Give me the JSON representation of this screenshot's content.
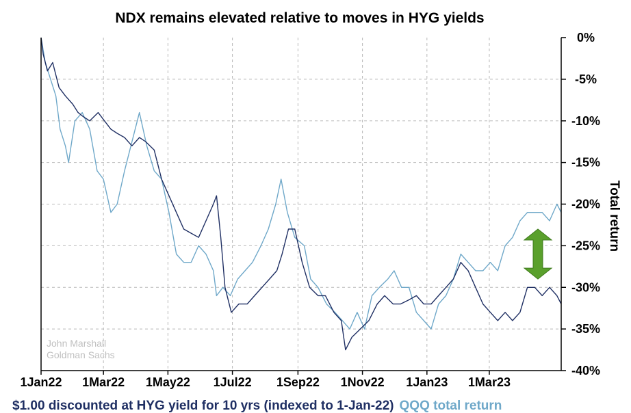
{
  "chart_data": {
    "type": "line",
    "title": "NDX remains elevated relative to moves in HYG yields",
    "ylabel": "Total return",
    "xlabel": "",
    "x_ticks": [
      "1Jan22",
      "1Mar22",
      "1May22",
      "1Jul22",
      "1Sep22",
      "1Nov22",
      "1Jan23",
      "1Mar23"
    ],
    "y_ticks": [
      "0%",
      "-5%",
      "-10%",
      "-15%",
      "-20%",
      "-25%",
      "-30%",
      "-35%",
      "-40%"
    ],
    "ylim": [
      -40,
      0
    ],
    "xlim": [
      "2022-01-01",
      "2023-05-08"
    ],
    "y_axis_side": "right",
    "grid": true,
    "legend_position": "bottom",
    "annotation": "green double-headed arrow between the two series near Apr 2023",
    "watermark": [
      "John Marshall",
      "Goldman Sachs"
    ],
    "series": [
      {
        "name": "$1.00 discounted at HYG yield for 10 yrs (indexed to 1-Jan-22)",
        "color": "#1f2f63",
        "points": [
          [
            "2022-01-01",
            0
          ],
          [
            "2022-01-03",
            -2
          ],
          [
            "2022-01-07",
            -4
          ],
          [
            "2022-01-12",
            -3
          ],
          [
            "2022-01-18",
            -6
          ],
          [
            "2022-01-24",
            -7
          ],
          [
            "2022-01-31",
            -8
          ],
          [
            "2022-02-05",
            -9
          ],
          [
            "2022-02-10",
            -9.5
          ],
          [
            "2022-02-16",
            -10
          ],
          [
            "2022-02-24",
            -9
          ],
          [
            "2022-03-02",
            -10
          ],
          [
            "2022-03-08",
            -11
          ],
          [
            "2022-03-14",
            -11.5
          ],
          [
            "2022-03-21",
            -12
          ],
          [
            "2022-03-28",
            -13
          ],
          [
            "2022-04-04",
            -12
          ],
          [
            "2022-04-10",
            -12.5
          ],
          [
            "2022-04-18",
            -13.5
          ],
          [
            "2022-04-25",
            -17
          ],
          [
            "2022-05-02",
            -19
          ],
          [
            "2022-05-09",
            -21
          ],
          [
            "2022-05-16",
            -23
          ],
          [
            "2022-05-23",
            -23.5
          ],
          [
            "2022-05-30",
            -24
          ],
          [
            "2022-06-06",
            -22
          ],
          [
            "2022-06-13",
            -20
          ],
          [
            "2022-06-16",
            -19
          ],
          [
            "2022-06-20",
            -24
          ],
          [
            "2022-06-24",
            -30
          ],
          [
            "2022-06-30",
            -33
          ],
          [
            "2022-07-07",
            -32
          ],
          [
            "2022-07-15",
            -32
          ],
          [
            "2022-07-22",
            -31
          ],
          [
            "2022-07-29",
            -30
          ],
          [
            "2022-08-05",
            -29
          ],
          [
            "2022-08-12",
            -28
          ],
          [
            "2022-08-17",
            -26
          ],
          [
            "2022-08-23",
            -23
          ],
          [
            "2022-08-29",
            -23
          ],
          [
            "2022-09-05",
            -27
          ],
          [
            "2022-09-12",
            -30
          ],
          [
            "2022-09-20",
            -31
          ],
          [
            "2022-09-27",
            -31
          ],
          [
            "2022-10-05",
            -33
          ],
          [
            "2022-10-12",
            -34
          ],
          [
            "2022-10-16",
            -37.5
          ],
          [
            "2022-10-22",
            -36
          ],
          [
            "2022-10-30",
            -35
          ],
          [
            "2022-11-07",
            -34
          ],
          [
            "2022-11-15",
            -32
          ],
          [
            "2022-11-22",
            -31
          ],
          [
            "2022-11-30",
            -32
          ],
          [
            "2022-12-07",
            -32
          ],
          [
            "2022-12-15",
            -31.5
          ],
          [
            "2022-12-22",
            -31
          ],
          [
            "2022-12-29",
            -32
          ],
          [
            "2023-01-05",
            -32
          ],
          [
            "2023-01-12",
            -31
          ],
          [
            "2023-01-19",
            -30
          ],
          [
            "2023-01-26",
            -29
          ],
          [
            "2023-02-02",
            -27
          ],
          [
            "2023-02-09",
            -28
          ],
          [
            "2023-02-16",
            -30
          ],
          [
            "2023-02-23",
            -32
          ],
          [
            "2023-03-02",
            -33
          ],
          [
            "2023-03-09",
            -34
          ],
          [
            "2023-03-16",
            -33
          ],
          [
            "2023-03-23",
            -34
          ],
          [
            "2023-03-30",
            -33
          ],
          [
            "2023-04-06",
            -30
          ],
          [
            "2023-04-13",
            -30
          ],
          [
            "2023-04-20",
            -31
          ],
          [
            "2023-04-27",
            -30
          ],
          [
            "2023-05-04",
            -31
          ],
          [
            "2023-05-08",
            -32
          ]
        ]
      },
      {
        "name": "QQQ total return",
        "color": "#6fa8c9",
        "points": [
          [
            "2022-01-01",
            0
          ],
          [
            "2022-01-05",
            -3
          ],
          [
            "2022-01-10",
            -5
          ],
          [
            "2022-01-15",
            -7
          ],
          [
            "2022-01-19",
            -11
          ],
          [
            "2022-01-24",
            -13
          ],
          [
            "2022-01-27",
            -15
          ],
          [
            "2022-02-02",
            -10
          ],
          [
            "2022-02-09",
            -9
          ],
          [
            "2022-02-16",
            -11
          ],
          [
            "2022-02-23",
            -16
          ],
          [
            "2022-03-01",
            -17
          ],
          [
            "2022-03-08",
            -21
          ],
          [
            "2022-03-14",
            -20
          ],
          [
            "2022-03-21",
            -16
          ],
          [
            "2022-03-29",
            -12
          ],
          [
            "2022-04-04",
            -9
          ],
          [
            "2022-04-11",
            -13
          ],
          [
            "2022-04-18",
            -16
          ],
          [
            "2022-04-25",
            -17
          ],
          [
            "2022-05-02",
            -21
          ],
          [
            "2022-05-09",
            -26
          ],
          [
            "2022-05-16",
            -27
          ],
          [
            "2022-05-23",
            -27
          ],
          [
            "2022-05-30",
            -25
          ],
          [
            "2022-06-06",
            -26
          ],
          [
            "2022-06-13",
            -28
          ],
          [
            "2022-06-16",
            -31
          ],
          [
            "2022-06-22",
            -30
          ],
          [
            "2022-06-29",
            -31
          ],
          [
            "2022-07-06",
            -29
          ],
          [
            "2022-07-13",
            -28
          ],
          [
            "2022-07-20",
            -27
          ],
          [
            "2022-07-28",
            -25
          ],
          [
            "2022-08-04",
            -23
          ],
          [
            "2022-08-11",
            -20
          ],
          [
            "2022-08-16",
            -17
          ],
          [
            "2022-08-22",
            -21
          ],
          [
            "2022-08-29",
            -24
          ],
          [
            "2022-09-07",
            -25
          ],
          [
            "2022-09-13",
            -29
          ],
          [
            "2022-09-20",
            -30
          ],
          [
            "2022-09-28",
            -32
          ],
          [
            "2022-10-06",
            -33
          ],
          [
            "2022-10-13",
            -34
          ],
          [
            "2022-10-20",
            -35
          ],
          [
            "2022-10-27",
            -33
          ],
          [
            "2022-11-03",
            -35
          ],
          [
            "2022-11-10",
            -31
          ],
          [
            "2022-11-17",
            -30
          ],
          [
            "2022-11-25",
            -29
          ],
          [
            "2022-12-01",
            -28
          ],
          [
            "2022-12-08",
            -30
          ],
          [
            "2022-12-15",
            -30
          ],
          [
            "2022-12-22",
            -33
          ],
          [
            "2022-12-29",
            -34
          ],
          [
            "2023-01-05",
            -35
          ],
          [
            "2023-01-12",
            -32
          ],
          [
            "2023-01-19",
            -31
          ],
          [
            "2023-01-26",
            -29
          ],
          [
            "2023-02-02",
            -26
          ],
          [
            "2023-02-09",
            -27
          ],
          [
            "2023-02-16",
            -28
          ],
          [
            "2023-02-23",
            -28
          ],
          [
            "2023-03-02",
            -27
          ],
          [
            "2023-03-09",
            -28
          ],
          [
            "2023-03-16",
            -25
          ],
          [
            "2023-03-23",
            -24
          ],
          [
            "2023-03-30",
            -22
          ],
          [
            "2023-04-06",
            -21
          ],
          [
            "2023-04-13",
            -21
          ],
          [
            "2023-04-20",
            -21
          ],
          [
            "2023-04-27",
            -22
          ],
          [
            "2023-05-04",
            -20
          ],
          [
            "2023-05-08",
            -21
          ]
        ]
      }
    ]
  }
}
